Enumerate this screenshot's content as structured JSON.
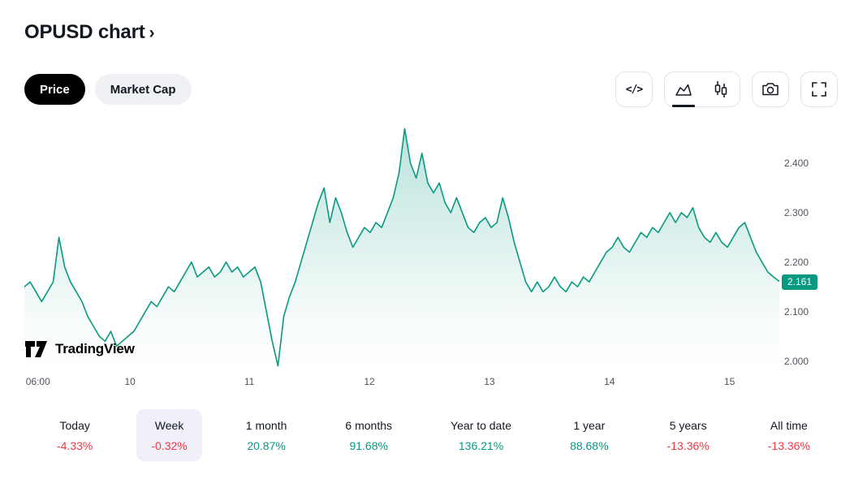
{
  "header": {
    "title": "OPUSD chart",
    "chevron": "›"
  },
  "tabs": {
    "price": "Price",
    "market_cap": "Market Cap"
  },
  "toolbar": {
    "code_glyph": "</>"
  },
  "watermark": {
    "brand": "TradingView"
  },
  "colors": {
    "accent": "#089981",
    "up": "#089981",
    "down": "#f23645",
    "active_period_bg": "#f0f0f8"
  },
  "chart_data": {
    "type": "area",
    "title": "OPUSD chart",
    "line_color": "#089981",
    "ylim": [
      1.978,
      2.487
    ],
    "y_ticks": [
      2.4,
      2.3,
      2.2,
      2.1,
      2.0
    ],
    "y_tick_labels": [
      "2.400",
      "2.300",
      "2.200",
      "2.100",
      "2.000"
    ],
    "x_ticks": [
      {
        "label": "06:00",
        "pos": 0.018
      },
      {
        "label": "10",
        "pos": 0.14
      },
      {
        "label": "11",
        "pos": 0.298
      },
      {
        "label": "12",
        "pos": 0.457
      },
      {
        "label": "13",
        "pos": 0.616
      },
      {
        "label": "14",
        "pos": 0.775
      },
      {
        "label": "15",
        "pos": 0.934
      }
    ],
    "last_price": 2.161,
    "last_price_label": "2.161",
    "legend_position": "none",
    "grid": false,
    "values": [
      2.15,
      2.16,
      2.14,
      2.12,
      2.14,
      2.16,
      2.25,
      2.19,
      2.16,
      2.14,
      2.12,
      2.09,
      2.07,
      2.05,
      2.04,
      2.06,
      2.03,
      2.04,
      2.05,
      2.06,
      2.08,
      2.1,
      2.12,
      2.11,
      2.13,
      2.15,
      2.14,
      2.16,
      2.18,
      2.2,
      2.17,
      2.18,
      2.19,
      2.17,
      2.18,
      2.2,
      2.18,
      2.19,
      2.17,
      2.18,
      2.19,
      2.16,
      2.1,
      2.04,
      1.99,
      2.09,
      2.13,
      2.16,
      2.2,
      2.24,
      2.28,
      2.32,
      2.35,
      2.28,
      2.33,
      2.3,
      2.26,
      2.23,
      2.25,
      2.27,
      2.26,
      2.28,
      2.27,
      2.3,
      2.33,
      2.38,
      2.47,
      2.4,
      2.37,
      2.42,
      2.36,
      2.34,
      2.36,
      2.32,
      2.3,
      2.33,
      2.3,
      2.27,
      2.26,
      2.28,
      2.29,
      2.27,
      2.28,
      2.33,
      2.29,
      2.24,
      2.2,
      2.16,
      2.14,
      2.16,
      2.14,
      2.15,
      2.17,
      2.15,
      2.14,
      2.16,
      2.15,
      2.17,
      2.16,
      2.18,
      2.2,
      2.22,
      2.23,
      2.25,
      2.23,
      2.22,
      2.24,
      2.26,
      2.25,
      2.27,
      2.26,
      2.28,
      2.3,
      2.28,
      2.3,
      2.29,
      2.31,
      2.27,
      2.25,
      2.24,
      2.26,
      2.24,
      2.23,
      2.25,
      2.27,
      2.28,
      2.25,
      2.22,
      2.2,
      2.18,
      2.17,
      2.161
    ]
  },
  "periods": [
    {
      "label": "Today",
      "value": "-4.33%",
      "direction": "down",
      "active": false
    },
    {
      "label": "Week",
      "value": "-0.32%",
      "direction": "down",
      "active": true
    },
    {
      "label": "1 month",
      "value": "20.87%",
      "direction": "up",
      "active": false
    },
    {
      "label": "6 months",
      "value": "91.68%",
      "direction": "up",
      "active": false
    },
    {
      "label": "Year to date",
      "value": "136.21%",
      "direction": "up",
      "active": false
    },
    {
      "label": "1 year",
      "value": "88.68%",
      "direction": "up",
      "active": false
    },
    {
      "label": "5 years",
      "value": "-13.36%",
      "direction": "down",
      "active": false
    },
    {
      "label": "All time",
      "value": "-13.36%",
      "direction": "down",
      "active": false
    }
  ]
}
